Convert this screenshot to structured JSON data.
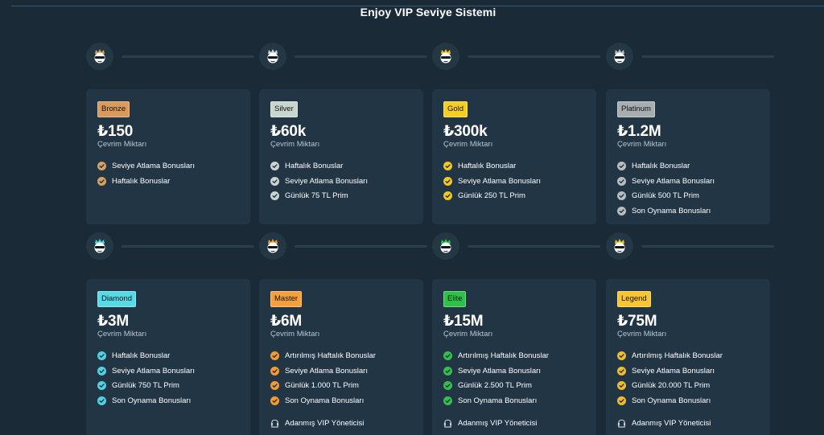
{
  "page_title": "Enjoy VIP Seviye Sistemi",
  "amount_label": "Çevrim Miktarı",
  "manager_label": "Adanmış VIP Yöneticisi",
  "tiers": [
    {
      "name": "Bronze",
      "color": "#d99a5b",
      "crown": "#d6a25e",
      "amount": "₺150",
      "perks": [
        "Seviye Atlama Bonusları",
        "Haftalık Bonuslar"
      ],
      "manager": false
    },
    {
      "name": "Silver",
      "color": "#c8d6d0",
      "crown": "#c9d3d1",
      "amount": "₺60k",
      "perks": [
        "Haftalık Bonuslar",
        "Seviye Atlama Bonusları",
        "Günlük 75 TL Prim"
      ],
      "manager": false
    },
    {
      "name": "Gold",
      "color": "#f5d023",
      "crown": "#f2c81c",
      "amount": "₺300k",
      "perks": [
        "Haftalık Bonuslar",
        "Seviye Atlama Bonusları",
        "Günlük 250 TL Prim"
      ],
      "manager": false
    },
    {
      "name": "Platinum",
      "color": "#a8aeb0",
      "crown": "#b7bdbf",
      "amount": "₺1.2M",
      "perks": [
        "Haftalık Bonuslar",
        "Seviye Atlama Bonusları",
        "Günlük 500 TL Prim",
        "Son Oynama Bonusları"
      ],
      "manager": false
    },
    {
      "name": "Diamond",
      "color": "#56dbe6",
      "crown": "#4fd3e3",
      "amount": "₺3M",
      "perks": [
        "Haftalık Bonuslar",
        "Seviye Atlama Bonusları",
        "Günlük 750 TL Prim",
        "Son Oynama Bonusları"
      ],
      "manager": false
    },
    {
      "name": "Master",
      "color": "#f4a13d",
      "crown": "#f39a34",
      "amount": "₺6M",
      "perks": [
        "Artırılmış Haftalık Bonuslar",
        "Seviye Atlama Bonusları",
        "Günlük 1.000 TL Prim",
        "Son Oynama Bonusları"
      ],
      "manager": true
    },
    {
      "name": "Elite",
      "color": "#2fc04a",
      "crown": "#31c24e",
      "amount": "₺15M",
      "perks": [
        "Artırılmış Haftalık Bonuslar",
        "Seviye Atlama Bonusları",
        "Günlük 2.500 TL Prim",
        "Son Oynama Bonusları"
      ],
      "manager": true
    },
    {
      "name": "Legend",
      "color": "#f8c531",
      "crown": "#f1bb2c",
      "amount": "₺75M",
      "perks": [
        "Artırılmış Haftalık Bonuslar",
        "Seviye Atlama Bonusları",
        "Günlük 20.000 TL Prim",
        "Son Oynama Bonusları"
      ],
      "manager": true
    }
  ]
}
